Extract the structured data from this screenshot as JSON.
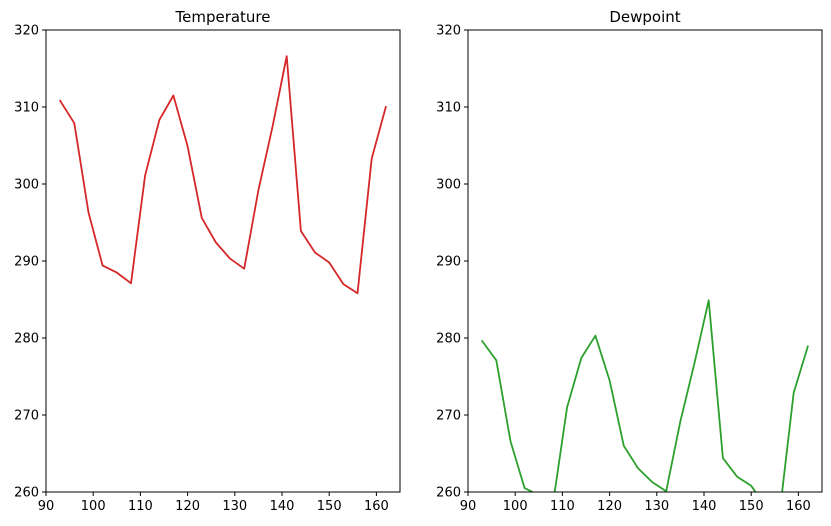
{
  "chart_data": [
    {
      "type": "line",
      "title": "Temperature",
      "xlabel": "",
      "ylabel": "",
      "xlim": [
        90,
        165
      ],
      "ylim": [
        260,
        320
      ],
      "xticks": [
        90,
        100,
        110,
        120,
        130,
        140,
        150,
        160
      ],
      "yticks": [
        260,
        270,
        280,
        290,
        300,
        310,
        320
      ],
      "grid": false,
      "series": [
        {
          "color": "#d62728",
          "x": [
            93,
            96,
            99,
            102,
            105,
            108,
            111,
            114,
            117,
            120,
            123,
            126,
            129,
            132,
            135,
            138,
            141,
            144,
            147,
            150,
            153,
            156,
            159,
            162
          ],
          "y": [
            310.8,
            307.9,
            296.3,
            289.4,
            288.5,
            287.1,
            301.1,
            308.3,
            311.5,
            304.9,
            295.6,
            292.4,
            290.3,
            289.0,
            299.2,
            307.5,
            316.6,
            293.9,
            291.1,
            289.8,
            287.0,
            285.8,
            303.3,
            310.0
          ]
        }
      ]
    },
    {
      "type": "line",
      "title": "Dewpoint",
      "xlabel": "",
      "ylabel": "",
      "xlim": [
        90,
        165
      ],
      "ylim": [
        260,
        320
      ],
      "xticks": [
        90,
        100,
        110,
        120,
        130,
        140,
        150,
        160
      ],
      "yticks": [
        260,
        270,
        280,
        290,
        300,
        310,
        320
      ],
      "grid": false,
      "series": [
        {
          "color": "#2ca02c",
          "x": [
            93,
            96,
            99,
            102,
            105,
            108,
            111,
            114,
            117,
            120,
            123,
            126,
            129,
            132,
            135,
            138,
            141,
            144,
            147,
            150,
            153,
            156,
            159,
            162
          ],
          "y": [
            279.6,
            277.1,
            266.6,
            260.5,
            259.6,
            258.5,
            271.0,
            277.4,
            280.3,
            274.5,
            266.0,
            263.1,
            261.3,
            260.1,
            269.2,
            276.8,
            284.9,
            264.4,
            262.0,
            260.8,
            258.2,
            257.1,
            272.9,
            278.9
          ]
        }
      ]
    }
  ]
}
